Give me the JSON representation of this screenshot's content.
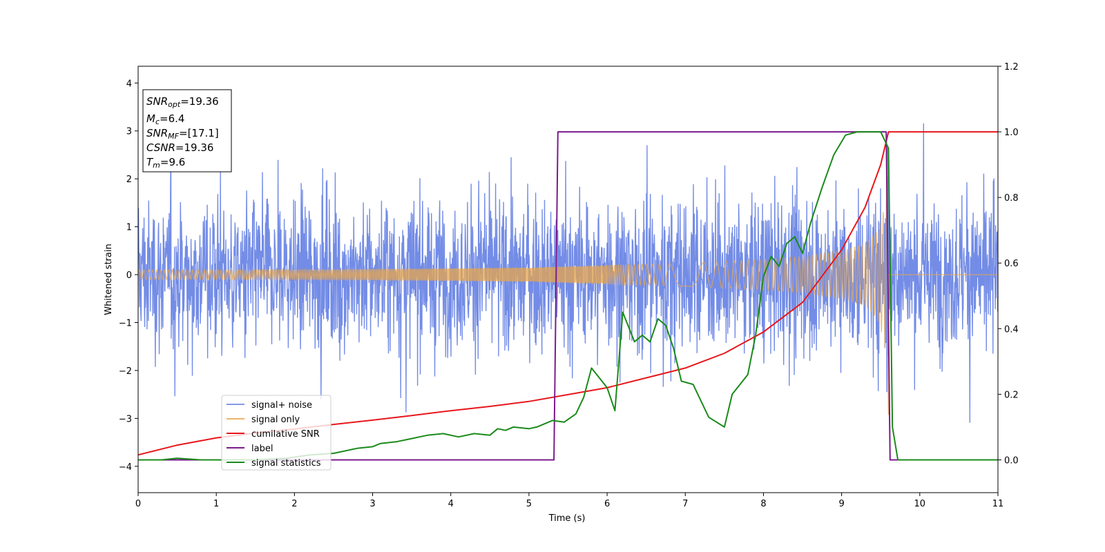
{
  "chart_data": {
    "type": "line",
    "xlabel": "Time (s)",
    "ylabel": "Whitened strain",
    "xlim": [
      0,
      11
    ],
    "ylim_left": [
      -4.55,
      4.35
    ],
    "ylim_right": [
      -0.1,
      1.2
    ],
    "x_ticks": [
      "0",
      "1",
      "2",
      "3",
      "4",
      "5",
      "6",
      "7",
      "8",
      "9",
      "10",
      "11"
    ],
    "y_left_ticks": [
      "−4",
      "−3",
      "−2",
      "−1",
      "0",
      "1",
      "2",
      "3",
      "4"
    ],
    "y_right_ticks": [
      "0.0",
      "0.2",
      "0.4",
      "0.6",
      "0.8",
      "1.0",
      "1.2"
    ],
    "info_box": [
      {
        "name": "SNR",
        "sub": "opt",
        "value": "=19.36"
      },
      {
        "name": "M",
        "sub": "c",
        "value": "=6.4"
      },
      {
        "name": "SNR",
        "sub": "MF",
        "value": "=[17.1]"
      },
      {
        "name": "CSNR",
        "sub": "",
        "value": "=19.36"
      },
      {
        "name": "T",
        "sub": "m",
        "value": "=9.6"
      }
    ],
    "legend_placement": "lower-left",
    "series": [
      {
        "name": "signal+ noise",
        "axis": "left",
        "color": "#6b86e5",
        "noise_amplitude": 1.6,
        "noise_peak_abs": 4.0,
        "t_range": [
          0,
          11
        ]
      },
      {
        "name": "signal only",
        "axis": "left",
        "color": "#e8a54b",
        "t_range": [
          0,
          11
        ],
        "merger_time": 9.6,
        "amplitude_points": [
          [
            0,
            0.1
          ],
          [
            2,
            0.1
          ],
          [
            4,
            0.13
          ],
          [
            5,
            0.15
          ],
          [
            6,
            0.2
          ],
          [
            7,
            0.24
          ],
          [
            8,
            0.32
          ],
          [
            8.5,
            0.38
          ],
          [
            9,
            0.5
          ],
          [
            9.3,
            0.65
          ],
          [
            9.45,
            0.9
          ],
          [
            9.55,
            1.4
          ],
          [
            9.6,
            3.0
          ]
        ]
      },
      {
        "name": "cumilative SNR",
        "axis": "right",
        "color": "#e8161b",
        "points": [
          [
            0,
            0.015
          ],
          [
            0.5,
            0.045
          ],
          [
            1,
            0.067
          ],
          [
            1.5,
            0.082
          ],
          [
            2,
            0.094
          ],
          [
            2.5,
            0.108
          ],
          [
            3,
            0.121
          ],
          [
            3.5,
            0.135
          ],
          [
            4,
            0.15
          ],
          [
            4.5,
            0.163
          ],
          [
            5,
            0.178
          ],
          [
            5.5,
            0.199
          ],
          [
            6,
            0.22
          ],
          [
            6.5,
            0.25
          ],
          [
            7,
            0.28
          ],
          [
            7.5,
            0.325
          ],
          [
            8,
            0.39
          ],
          [
            8.5,
            0.48
          ],
          [
            9,
            0.64
          ],
          [
            9.3,
            0.77
          ],
          [
            9.5,
            0.9
          ],
          [
            9.6,
            1.0
          ],
          [
            11,
            1.0
          ]
        ]
      },
      {
        "name": "label",
        "axis": "right",
        "color": "#7a1a8c",
        "points": [
          [
            0,
            0
          ],
          [
            5.32,
            0
          ],
          [
            5.37,
            1.0
          ],
          [
            9.57,
            1.0
          ],
          [
            9.62,
            0
          ],
          [
            11,
            0
          ]
        ]
      },
      {
        "name": "signal statistics",
        "axis": "right",
        "color": "#1a8a1a",
        "points": [
          [
            0,
            0.0
          ],
          [
            0.3,
            0.0
          ],
          [
            0.5,
            0.005
          ],
          [
            0.8,
            0.0
          ],
          [
            1.5,
            0.0
          ],
          [
            1.9,
            0.005
          ],
          [
            2.2,
            0.015
          ],
          [
            2.5,
            0.02
          ],
          [
            2.8,
            0.035
          ],
          [
            3.0,
            0.04
          ],
          [
            3.1,
            0.05
          ],
          [
            3.3,
            0.055
          ],
          [
            3.5,
            0.065
          ],
          [
            3.7,
            0.075
          ],
          [
            3.9,
            0.08
          ],
          [
            4.1,
            0.07
          ],
          [
            4.3,
            0.08
          ],
          [
            4.5,
            0.075
          ],
          [
            4.6,
            0.095
          ],
          [
            4.7,
            0.09
          ],
          [
            4.8,
            0.1
          ],
          [
            5.0,
            0.095
          ],
          [
            5.1,
            0.1
          ],
          [
            5.3,
            0.12
          ],
          [
            5.45,
            0.115
          ],
          [
            5.6,
            0.14
          ],
          [
            5.7,
            0.19
          ],
          [
            5.8,
            0.28
          ],
          [
            5.9,
            0.25
          ],
          [
            6.0,
            0.22
          ],
          [
            6.1,
            0.15
          ],
          [
            6.2,
            0.45
          ],
          [
            6.35,
            0.36
          ],
          [
            6.45,
            0.38
          ],
          [
            6.55,
            0.36
          ],
          [
            6.65,
            0.43
          ],
          [
            6.75,
            0.41
          ],
          [
            6.85,
            0.34
          ],
          [
            6.95,
            0.24
          ],
          [
            7.1,
            0.23
          ],
          [
            7.3,
            0.13
          ],
          [
            7.5,
            0.1
          ],
          [
            7.6,
            0.2
          ],
          [
            7.8,
            0.26
          ],
          [
            7.9,
            0.38
          ],
          [
            8.0,
            0.56
          ],
          [
            8.1,
            0.62
          ],
          [
            8.2,
            0.59
          ],
          [
            8.3,
            0.66
          ],
          [
            8.4,
            0.68
          ],
          [
            8.5,
            0.63
          ],
          [
            8.6,
            0.72
          ],
          [
            8.75,
            0.83
          ],
          [
            8.9,
            0.93
          ],
          [
            9.05,
            0.99
          ],
          [
            9.2,
            1.0
          ],
          [
            9.5,
            1.0
          ],
          [
            9.6,
            0.95
          ],
          [
            9.65,
            0.1
          ],
          [
            9.72,
            0.0
          ],
          [
            11,
            0.0
          ]
        ]
      }
    ]
  }
}
